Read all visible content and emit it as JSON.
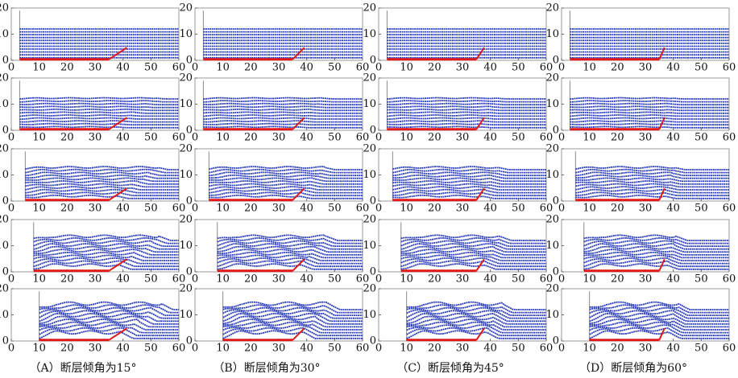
{
  "axes": {
    "xticks": [
      0,
      10,
      20,
      30,
      40,
      50,
      60
    ],
    "yticks": [
      0,
      10,
      20
    ],
    "xlim": [
      0,
      60
    ],
    "ylim": [
      0,
      20
    ]
  },
  "captions": [
    "（A）断层倾角为15°",
    "（B）断层倾角为30°",
    "（C）断层倾角为45°",
    "（D）断层倾角为60°"
  ]
}
